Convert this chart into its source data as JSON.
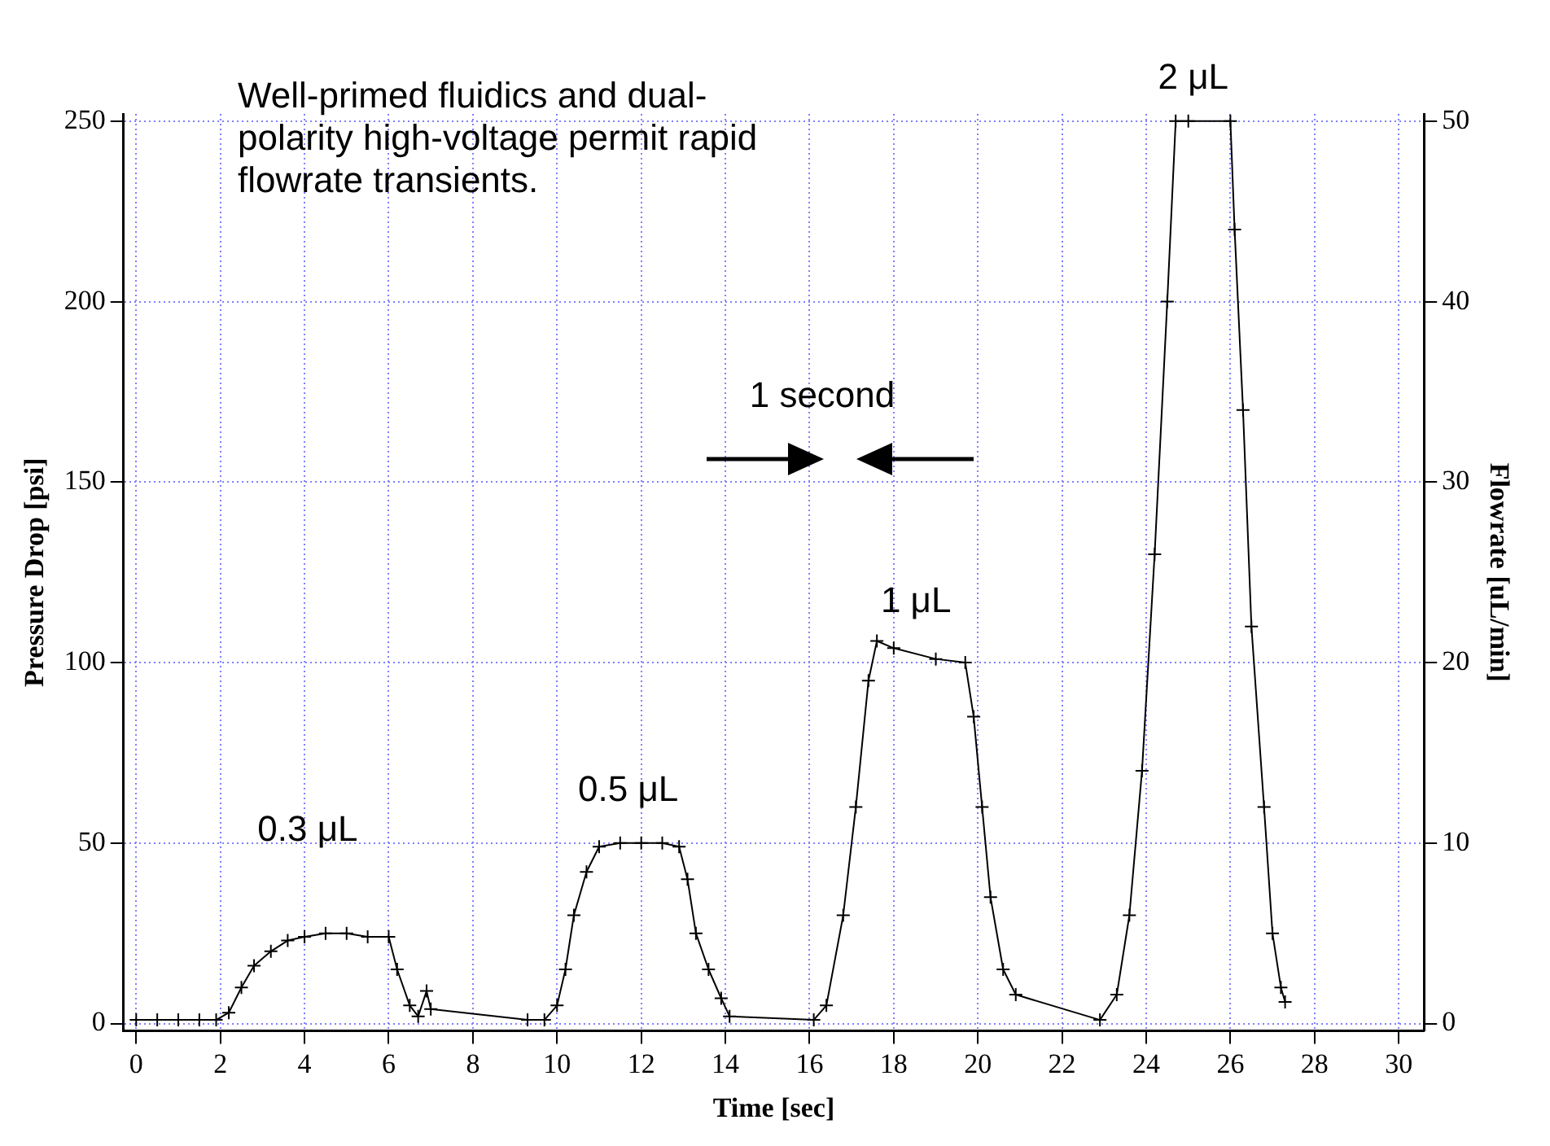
{
  "chart_data": {
    "type": "line",
    "xlabel": "Time [sec]",
    "ylabel": "Pressure Drop [psi]",
    "y2label": "Flowrate [uL/min]",
    "x": [
      0,
      0.5,
      1,
      1.5,
      1.9,
      2.2,
      2.5,
      2.8,
      3.2,
      3.6,
      4,
      4.5,
      5,
      5.5,
      6,
      6.2,
      6.5,
      6.7,
      6.9,
      7,
      9.3,
      9.7,
      10,
      10.2,
      10.4,
      10.7,
      11,
      11.5,
      12,
      12.5,
      12.9,
      13.1,
      13.3,
      13.6,
      13.9,
      14.1,
      16.1,
      16.4,
      16.8,
      17.1,
      17.4,
      17.6,
      18,
      19,
      19.7,
      19.9,
      20.1,
      20.3,
      20.6,
      20.9,
      22.9,
      23.3,
      23.6,
      23.9,
      24.2,
      24.5,
      24.7,
      25,
      26,
      26.1,
      26.3,
      26.5,
      26.8,
      27,
      27.2,
      27.3
    ],
    "series": [
      {
        "color": "#000000",
        "values": [
          1,
          1,
          1,
          1,
          1,
          3,
          10,
          16,
          20,
          23,
          24,
          25,
          25,
          24,
          24,
          15,
          5,
          2,
          9,
          4,
          1,
          1,
          5,
          15,
          30,
          42,
          49,
          50,
          50,
          50,
          49,
          40,
          25,
          15,
          7,
          2,
          1,
          5,
          30,
          60,
          95,
          106,
          104,
          101,
          100,
          85,
          60,
          35,
          15,
          8,
          1,
          8,
          30,
          70,
          130,
          200,
          250,
          250,
          250,
          220,
          170,
          110,
          60,
          25,
          10,
          6
        ]
      }
    ],
    "xlim": [
      -0.3,
      30.6
    ],
    "xticks": [
      0,
      2,
      4,
      6,
      8,
      10,
      12,
      14,
      16,
      18,
      20,
      22,
      24,
      26,
      28,
      30
    ],
    "ylim": [
      -2,
      252
    ],
    "yticks": [
      0,
      50,
      100,
      150,
      200,
      250
    ],
    "y2lim": [
      -0.4,
      50.4
    ],
    "y2ticks": [
      0,
      10,
      20,
      30,
      40,
      50
    ],
    "grid": true,
    "marker": "cross",
    "line_style": "solid",
    "legend": false,
    "annotations": [
      "Well-primed fluidics and dual-polarity high-voltage permit rapid flowrate transients.",
      "1 second",
      {
        "text": "0.3 μL",
        "x": 4.5,
        "y": 25
      },
      {
        "text": "0.5 μL",
        "x": 12,
        "y": 50
      },
      {
        "text": "1 μL",
        "x": 17.6,
        "y": 106
      },
      {
        "text": "2 μL",
        "x": 25,
        "y": 250
      }
    ]
  }
}
